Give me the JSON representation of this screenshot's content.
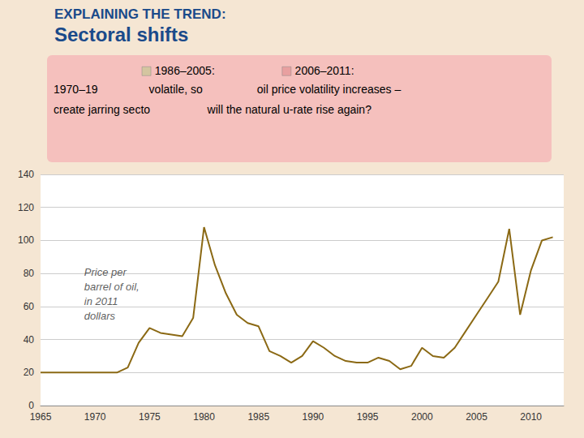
{
  "chart_data": {
    "type": "line",
    "title": "EXPLAINING THE TREND:",
    "subtitle": "Sectoral shifts",
    "x": [
      1965,
      1966,
      1967,
      1968,
      1969,
      1970,
      1971,
      1972,
      1973,
      1974,
      1975,
      1976,
      1977,
      1978,
      1979,
      1980,
      1981,
      1982,
      1983,
      1984,
      1985,
      1986,
      1987,
      1988,
      1989,
      1990,
      1991,
      1992,
      1993,
      1994,
      1995,
      1996,
      1997,
      1998,
      1999,
      2000,
      2001,
      2002,
      2003,
      2004,
      2005,
      2006,
      2007,
      2008,
      2009,
      2010,
      2011,
      2012
    ],
    "values": [
      20,
      20,
      20,
      20,
      20,
      20,
      20,
      20,
      23,
      38,
      47,
      44,
      43,
      42,
      53,
      108,
      85,
      68,
      55,
      50,
      48,
      33,
      30,
      26,
      30,
      39,
      35,
      30,
      27,
      26,
      26,
      29,
      27,
      22,
      24,
      35,
      30,
      29,
      35,
      45,
      55,
      65,
      75,
      107,
      55,
      82,
      100,
      102
    ],
    "color": "#8B6914",
    "xlim": [
      1965,
      2013
    ],
    "ylim": [
      0,
      140
    ],
    "xticks": [
      1965,
      1970,
      1975,
      1980,
      1985,
      1990,
      1995,
      2000,
      2005,
      2010
    ],
    "yticks": [
      0,
      20,
      40,
      60,
      80,
      100,
      120,
      140
    ],
    "grid": "y",
    "annotations": [
      {
        "text": "Price per\nbarrel of oil,\nin 2011\ndollars",
        "x": 1969,
        "y": 85
      }
    ],
    "box_texts": [
      [
        {
          "text": "1986–2005:",
          "color": "#d4c5a0"
        },
        {
          "text": "2006–2011:",
          "color": "#e8a0a0"
        }
      ],
      [
        {
          "text": "1970–19"
        },
        {
          "text": "volatile, so"
        },
        {
          "text": "oil price volatility increases –"
        }
      ],
      [
        {
          "text": "create jarring secto"
        },
        {
          "text": "will the natural u-rate rise again?"
        }
      ]
    ]
  }
}
